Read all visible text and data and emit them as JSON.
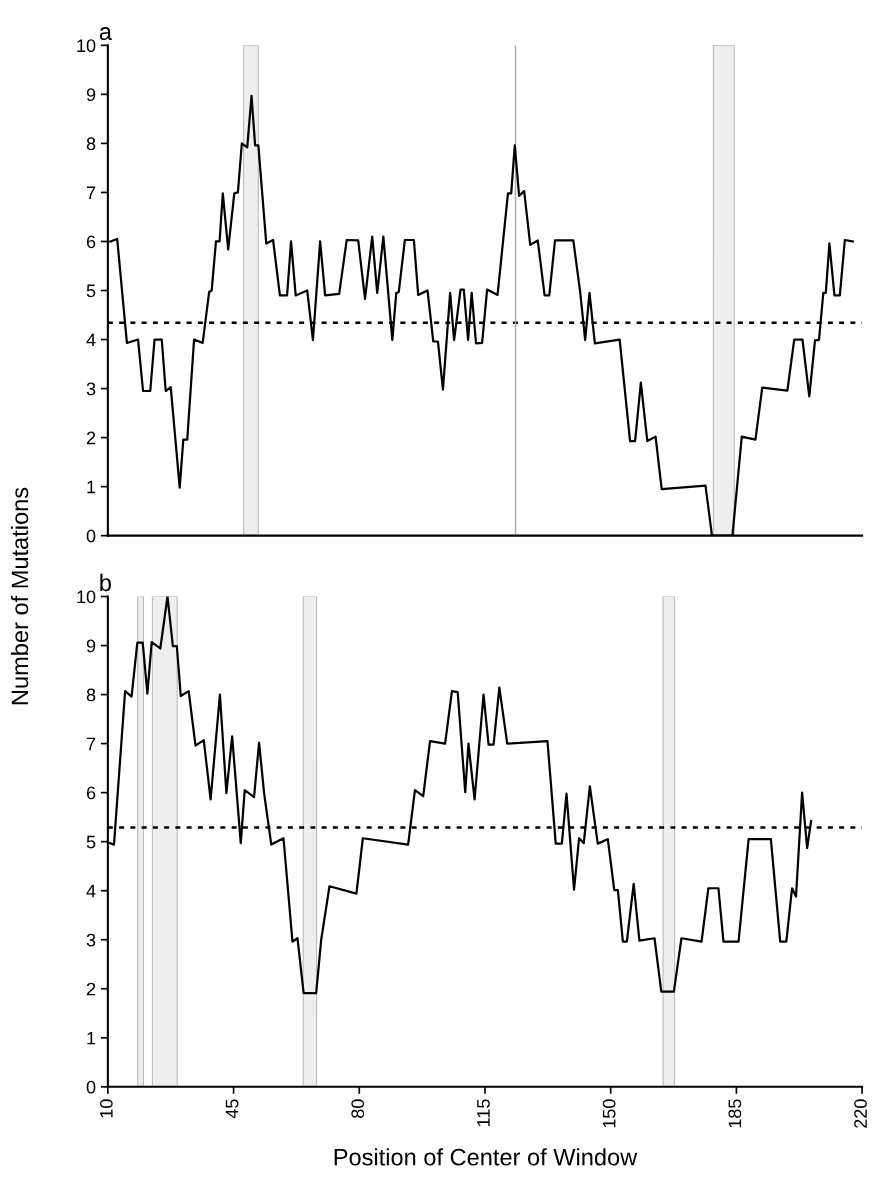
{
  "chart_data": [
    {
      "type": "line",
      "title": "a",
      "ylabel": "Number of Mutations",
      "xlim": [
        10,
        220
      ],
      "xticks": [
        10,
        45,
        80,
        115,
        150,
        185,
        220
      ],
      "ylim": [
        0,
        10
      ],
      "yticks": [
        0,
        1,
        2,
        3,
        4,
        5,
        6,
        7,
        8,
        9,
        10
      ],
      "tick_labels": "y",
      "grid": false,
      "legend": false,
      "series": [
        {
          "color": "#000000",
          "x": [
            10.7,
            12.6,
            15.3,
            18.4,
            19.8,
            21.8,
            23.0,
            25.0,
            26.1,
            27.5,
            30.0,
            31.0,
            32.1,
            34.0,
            36.4,
            38.2,
            38.9,
            40.1,
            41.1,
            42.0,
            43.5,
            45.2,
            46.2,
            47.3,
            48.8,
            50.0,
            51.0,
            51.9,
            54.1,
            56.0,
            57.9,
            59.9,
            61.0,
            62.3,
            65.5,
            67.1,
            69.1,
            70.5,
            74.4,
            76.5,
            79.7,
            81.6,
            83.6,
            85.0,
            86.7,
            89.2,
            90.3,
            91.0,
            92.7,
            95.2,
            96.4,
            99.0,
            100.6,
            101.9,
            103.3,
            105.3,
            106.4,
            108.2,
            109.1,
            110.3,
            111.3,
            112.5,
            114.2,
            115.6,
            118.5,
            121.4,
            122.3,
            123.3,
            124.5,
            125.9,
            127.6,
            129.7,
            131.6,
            132.9,
            134.5,
            139.6,
            141.5,
            142.9,
            144.1,
            145.6,
            152.5,
            155.4,
            156.8,
            158.4,
            160.2,
            162.5,
            164.2,
            176.4,
            178.2,
            183.9,
            186.5,
            190.3,
            192.2,
            199.2,
            201.1,
            203.4,
            205.3,
            206.9,
            208.0,
            209.2,
            209.9,
            210.9,
            212.3,
            213.8,
            215.2,
            217.4
          ],
          "values": [
            6.0,
            6.05,
            3.93,
            4.0,
            2.95,
            2.95,
            4.0,
            4.0,
            2.95,
            3.03,
            0.98,
            1.96,
            1.96,
            4.0,
            3.93,
            4.97,
            5.0,
            6.0,
            6.0,
            6.98,
            5.84,
            6.98,
            7.0,
            8.0,
            7.92,
            8.97,
            7.96,
            7.96,
            5.96,
            6.03,
            4.9,
            4.9,
            6.0,
            4.9,
            5.0,
            3.99,
            6.0,
            4.9,
            4.93,
            6.03,
            6.02,
            4.83,
            6.1,
            4.95,
            6.1,
            3.99,
            4.95,
            4.97,
            6.03,
            6.03,
            4.91,
            5.0,
            3.96,
            3.96,
            2.98,
            4.95,
            3.99,
            5.02,
            5.02,
            3.99,
            4.95,
            3.92,
            3.93,
            5.02,
            4.91,
            6.98,
            6.98,
            7.96,
            6.93,
            7.03,
            5.93,
            6.02,
            4.9,
            4.9,
            6.02,
            6.02,
            4.97,
            3.99,
            4.95,
            3.92,
            4.0,
            1.93,
            1.93,
            3.12,
            1.93,
            2.02,
            0.95,
            1.02,
            0,
            0,
            2.02,
            1.96,
            3.02,
            2.96,
            4.0,
            4.0,
            2.84,
            3.99,
            3.99,
            4.95,
            4.95,
            5.96,
            4.9,
            4.9,
            6.03,
            6.0
          ]
        }
      ],
      "ref_lines": [
        {
          "axis": "y",
          "value": 4.34,
          "color": "#000000",
          "line_style": "dotted"
        },
        {
          "axis": "x",
          "value": 123.5,
          "color": "#aaaaaa",
          "line_style": "solid"
        }
      ],
      "bands": [
        {
          "axis": "x",
          "from": 47.8,
          "to": 51.9,
          "color": "#eeeeee"
        },
        {
          "axis": "x",
          "from": 178.6,
          "to": 184.4,
          "color": "#eeeeee"
        }
      ]
    },
    {
      "type": "line",
      "title": "b",
      "xlabel": "Position of Center of Window",
      "xlim": [
        10,
        220
      ],
      "xticks": [
        10,
        45,
        80,
        115,
        150,
        185,
        220
      ],
      "ylim": [
        0,
        10
      ],
      "yticks": [
        0,
        1,
        2,
        3,
        4,
        5,
        6,
        7,
        8,
        9,
        10
      ],
      "grid": false,
      "legend": false,
      "series": [
        {
          "color": "#000000",
          "x": [
            10.6,
            11.7,
            14.8,
            16.6,
            18.2,
            19.7,
            21.0,
            22.2,
            24.6,
            26.6,
            28.1,
            29.2,
            30.3,
            32.5,
            34.4,
            36.7,
            38.6,
            41.2,
            43.0,
            44.6,
            47.0,
            48.1,
            50.7,
            52.1,
            53.5,
            55.5,
            58.9,
            61.4,
            62.8,
            64.5,
            68.0,
            69.4,
            71.7,
            79.2,
            81.0,
            93.6,
            95.5,
            97.8,
            99.7,
            103.9,
            105.8,
            107.4,
            109.5,
            110.4,
            112.1,
            114.6,
            116.0,
            117.4,
            119.0,
            121.2,
            132.4,
            134.7,
            136.4,
            137.7,
            139.8,
            141.2,
            142.5,
            144.2,
            146.4,
            149.2,
            151.0,
            152.0,
            153.4,
            154.5,
            156.4,
            158.0,
            162.2,
            164.1,
            167.6,
            169.7,
            175.3,
            177.2,
            180.0,
            181.4,
            185.6,
            188.4,
            194.6,
            197.2,
            198.9,
            200.5,
            201.6,
            203.3,
            204.7,
            205.8
          ],
          "values": [
            4.97,
            4.94,
            8.07,
            7.96,
            9.06,
            9.06,
            8.02,
            9.07,
            8.94,
            10.0,
            8.99,
            8.99,
            7.97,
            8.07,
            6.96,
            7.07,
            5.86,
            8.0,
            5.99,
            7.15,
            4.97,
            6.05,
            5.91,
            7.02,
            5.99,
            4.94,
            5.07,
            2.96,
            3.03,
            1.91,
            1.91,
            3.0,
            4.09,
            3.94,
            5.07,
            4.94,
            6.05,
            5.93,
            7.05,
            7.0,
            8.07,
            8.05,
            6.01,
            7.0,
            5.86,
            8.0,
            6.98,
            6.98,
            8.14,
            7.0,
            7.05,
            4.96,
            4.96,
            5.98,
            4.02,
            5.07,
            4.97,
            6.13,
            4.96,
            5.05,
            4.01,
            4.01,
            2.96,
            2.96,
            4.14,
            2.98,
            3.03,
            1.94,
            1.94,
            3.03,
            2.96,
            4.05,
            4.05,
            2.96,
            2.96,
            5.05,
            5.05,
            2.96,
            2.96,
            4.05,
            3.88,
            6.0,
            4.87,
            5.42
          ]
        }
      ],
      "ref_lines": [
        {
          "axis": "y",
          "value": 5.29,
          "color": "#000000",
          "line_style": "dotted"
        }
      ],
      "bands": [
        {
          "axis": "x",
          "from": 18.3,
          "to": 19.9,
          "color": "#eeeeee"
        },
        {
          "axis": "x",
          "from": 22.4,
          "to": 29.3,
          "color": "#eeeeee"
        },
        {
          "axis": "x",
          "from": 64.4,
          "to": 68.1,
          "color": "#eeeeee"
        },
        {
          "axis": "x",
          "from": 164.6,
          "to": 167.8,
          "color": "#eeeeee"
        }
      ]
    }
  ]
}
